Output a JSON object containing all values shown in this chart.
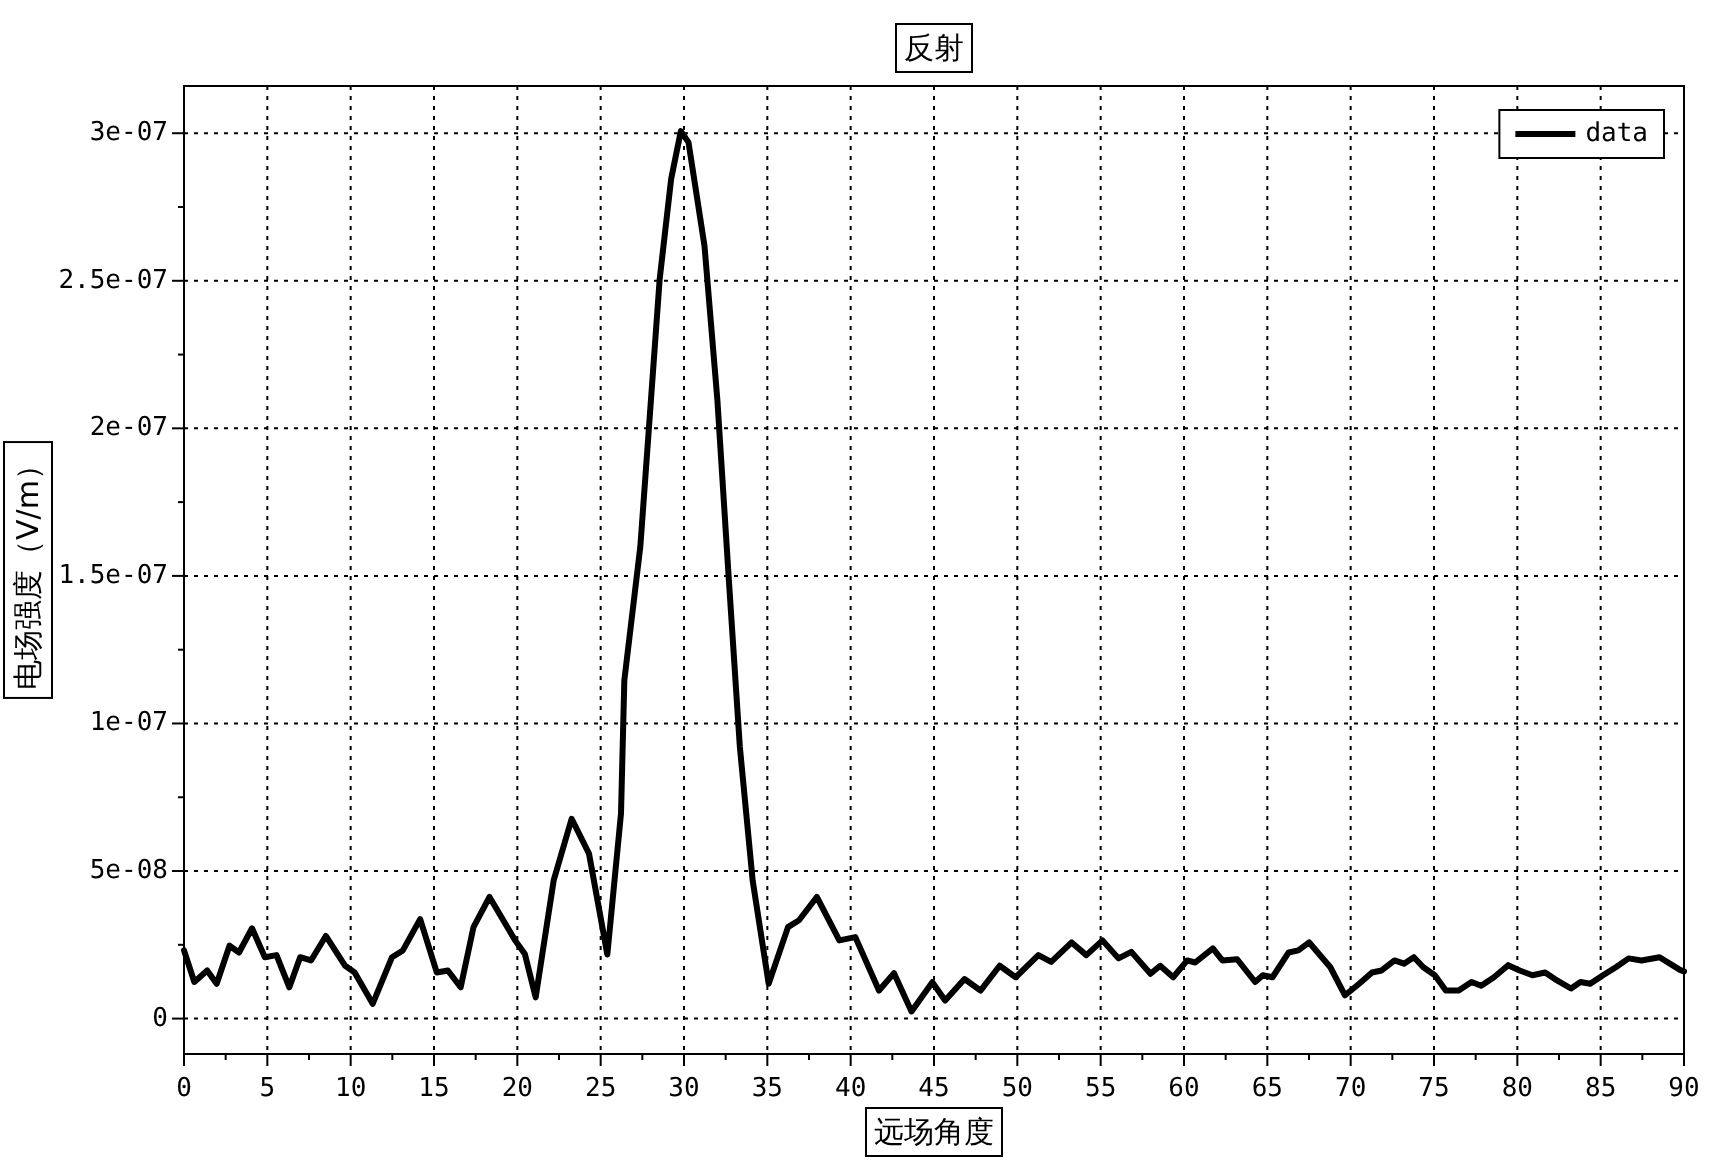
{
  "chart_data": {
    "type": "line",
    "title": "反射",
    "xlabel": "远场角度",
    "ylabel": "电场强度（V/m）",
    "x": [
      0,
      0.62,
      1.39,
      1.96,
      2.73,
      3.3,
      4.08,
      4.85,
      5.55,
      6.32,
      6.97,
      7.62,
      8.51,
      9.67,
      10.24,
      11.32,
      12.48,
      13.13,
      14.17,
      15.17,
      15.83,
      16.6,
      17.37,
      18.33,
      19.87,
      20.45,
      21.1,
      22.18,
      23.26,
      24.3,
      25.4,
      26.22,
      26.42,
      27.38,
      27.96,
      28.54,
      29.23,
      29.81,
      30.27,
      31.23,
      32.0,
      32.69,
      33.35,
      34.12,
      35.08,
      36.24,
      36.9,
      37.97,
      39.32,
      40.28,
      41.7,
      42.6,
      43.65,
      44.9,
      45.67,
      46.83,
      47.79,
      48.94,
      49.9,
      51.26,
      52.03,
      53.26,
      54.14,
      55.11,
      56.07,
      56.84,
      57.99,
      58.57,
      59.35,
      60.19,
      60.67,
      61.73,
      62.3,
      63.19,
      64.27,
      64.73,
      65.31,
      66.28,
      66.86,
      67.51,
      68.78,
      69.66,
      70.51,
      71.28,
      71.86,
      72.63,
      73.2,
      73.79,
      74.36,
      75.05,
      75.71,
      76.48,
      77.25,
      77.83,
      78.6,
      79.45,
      80.14,
      80.9,
      81.67,
      82.25,
      83.22,
      83.79,
      84.37,
      85.14,
      85.91,
      86.68,
      87.45,
      88.53,
      89.76,
      90
    ],
    "series": [
      {
        "name": "data",
        "color": "#000000",
        "values": [
          2.31e-08,
          1.24e-08,
          1.63e-08,
          1.18e-08,
          2.47e-08,
          2.24e-08,
          3.06e-08,
          2.08e-08,
          2.15e-08,
          1.06e-08,
          2.08e-08,
          1.97e-08,
          2.8e-08,
          1.79e-08,
          1.56e-08,
          5e-09,
          2.08e-08,
          2.31e-08,
          3.37e-08,
          1.56e-08,
          1.63e-08,
          1.06e-08,
          3.1e-08,
          4.12e-08,
          2.65e-08,
          2.19e-08,
          7.2e-09,
          4.68e-08,
          6.77e-08,
          5.59e-08,
          2.17e-08,
          6.95e-08,
          1.147e-07,
          1.6e-07,
          2.052e-07,
          2.505e-07,
          2.845e-07,
          3.007e-07,
          2.969e-07,
          2.618e-07,
          2.098e-07,
          1.487e-07,
          9.21e-08,
          4.68e-08,
          1.18e-08,
          3.1e-08,
          3.33e-08,
          4.12e-08,
          2.65e-08,
          2.76e-08,
          9.5e-09,
          1.54e-08,
          2.4e-09,
          1.23e-08,
          6.1e-09,
          1.34e-08,
          9.5e-09,
          1.79e-08,
          1.4e-08,
          2.15e-08,
          1.92e-08,
          2.58e-08,
          2.15e-08,
          2.65e-08,
          2.04e-08,
          2.26e-08,
          1.52e-08,
          1.79e-08,
          1.4e-08,
          1.97e-08,
          1.9e-08,
          2.38e-08,
          1.97e-08,
          2.01e-08,
          1.24e-08,
          1.47e-08,
          1.4e-08,
          2.24e-08,
          2.31e-08,
          2.58e-08,
          1.74e-08,
          7.9e-09,
          1.18e-08,
          1.56e-08,
          1.63e-08,
          1.97e-08,
          1.86e-08,
          2.08e-08,
          1.74e-08,
          1.47e-08,
          9.5e-09,
          9.5e-09,
          1.24e-08,
          1.11e-08,
          1.4e-08,
          1.81e-08,
          1.63e-08,
          1.47e-08,
          1.56e-08,
          1.34e-08,
          1.02e-08,
          1.24e-08,
          1.18e-08,
          1.47e-08,
          1.74e-08,
          2.04e-08,
          1.97e-08,
          2.08e-08,
          1.65e-08,
          1.6e-08
        ]
      }
    ],
    "xlim": [
      0,
      90
    ],
    "ylim": [
      -1.2e-08,
      3.16e-07
    ],
    "xticks": [
      0,
      5,
      10,
      15,
      20,
      25,
      30,
      35,
      40,
      45,
      50,
      55,
      60,
      65,
      70,
      75,
      80,
      85,
      90
    ],
    "yticks": [
      {
        "value": 0,
        "label": "0"
      },
      {
        "value": 5e-08,
        "label": "5e-08"
      },
      {
        "value": 1e-07,
        "label": "1e-07"
      },
      {
        "value": 1.5e-07,
        "label": "1.5e-07"
      },
      {
        "value": 2e-07,
        "label": "2e-07"
      },
      {
        "value": 2.5e-07,
        "label": "2.5e-07"
      },
      {
        "value": 3e-07,
        "label": "3e-07"
      }
    ],
    "grid": true,
    "legend": "top right",
    "marker": "none",
    "line_style": "solid"
  }
}
